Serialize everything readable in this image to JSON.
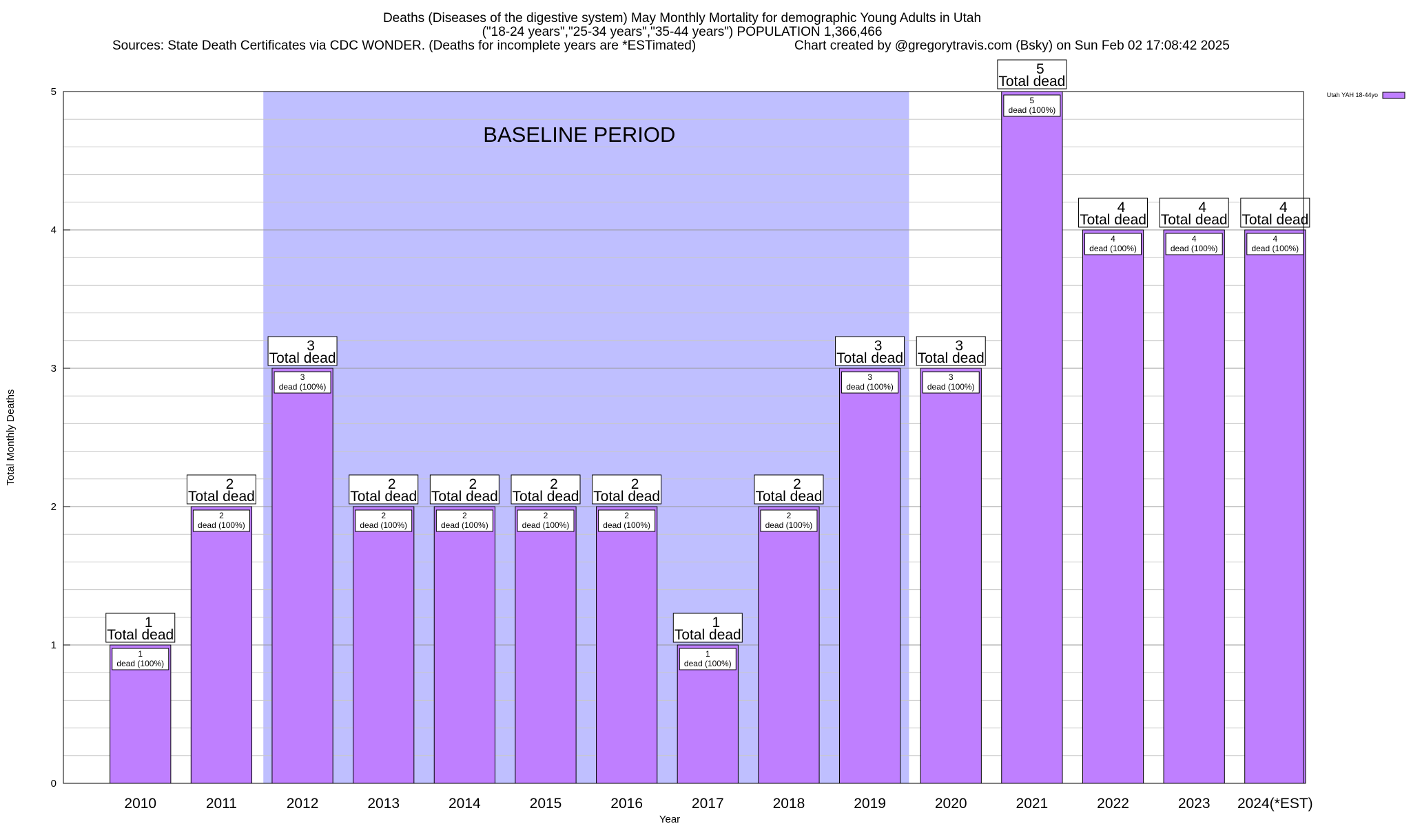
{
  "header": {
    "title_line1": "Deaths (Diseases of the digestive system) May Monthly Mortality for demographic Young Adults in Utah",
    "title_line2": "(\"18-24 years\",\"25-34 years\",\"35-44 years\") POPULATION 1,366,466",
    "title_line3_left": "Sources: State Death Certificates via CDC WONDER. (Deaths for incomplete years are *ESTimated)",
    "title_line3_right": "Chart created by @gregorytravis.com (Bsky) on Sun Feb 02 17:08:42 2025"
  },
  "chart_data": {
    "type": "bar",
    "xlabel": "Year",
    "ylabel": "Total Monthly Deaths",
    "ylim": [
      0,
      5
    ],
    "y_major_ticks": [
      0,
      1,
      2,
      3,
      4,
      5
    ],
    "y_minor_step": 0.2,
    "grid": true,
    "legend_position": "top-right",
    "colors": {
      "bar": "#bf7fff",
      "baseline_band": "#bfbfff"
    },
    "baseline_band": {
      "label": "BASELINE PERIOD",
      "from": "2012",
      "to": "2019"
    },
    "categories": [
      "2010",
      "2011",
      "2012",
      "2013",
      "2014",
      "2015",
      "2016",
      "2017",
      "2018",
      "2019",
      "2020",
      "2021",
      "2022",
      "2023",
      "2024(*EST)"
    ],
    "series": [
      {
        "name": "Utah YAH 18-44yo",
        "values": [
          1,
          2,
          3,
          2,
          2,
          2,
          2,
          1,
          2,
          3,
          3,
          5,
          4,
          4,
          4
        ]
      }
    ],
    "top_labels_suffix": "Total dead",
    "inner_labels_suffix": "dead (100%)"
  }
}
